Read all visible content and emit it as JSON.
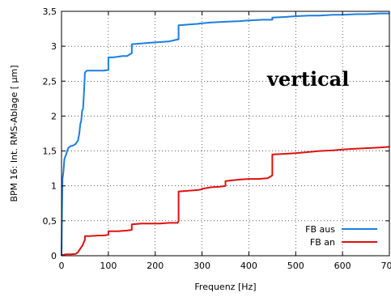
{
  "chart_data": {
    "type": "line",
    "title": "",
    "xlabel": "Frequenz [Hz]",
    "ylabel": "BPM 16: Int. RMS-Ablage [ µm]",
    "annotation": "vertical",
    "xlim": [
      0,
      700
    ],
    "ylim": [
      0,
      3.5
    ],
    "grid": true,
    "legend_position": "bottom-right",
    "x_ticks": [
      0,
      100,
      200,
      300,
      400,
      500,
      600,
      700
    ],
    "x_tick_labels": [
      "0",
      "100",
      "200",
      "300",
      "400",
      "500",
      "600",
      "700"
    ],
    "y_ticks": [
      0,
      0.5,
      1,
      1.5,
      2,
      2.5,
      3,
      3.5
    ],
    "y_tick_labels": [
      "0",
      "0,5",
      "1",
      "1,5",
      "2",
      "2,5",
      "3",
      "3,5"
    ],
    "series": [
      {
        "name": "FB aus",
        "color": "#1a7fe0",
        "x": [
          0,
          1,
          2,
          4,
          6,
          8,
          10,
          12,
          15,
          20,
          25,
          30,
          35,
          38,
          40,
          42,
          44,
          46,
          48,
          50,
          52,
          55,
          60,
          70,
          80,
          90,
          100,
          100,
          110,
          120,
          130,
          140,
          150,
          150,
          170,
          190,
          210,
          230,
          250,
          250,
          270,
          290,
          300,
          320,
          350,
          380,
          400,
          430,
          450,
          450,
          480,
          500,
          530,
          550,
          580,
          600,
          630,
          650,
          680,
          700
        ],
        "y": [
          0,
          0.65,
          1.1,
          1.2,
          1.38,
          1.42,
          1.45,
          1.5,
          1.55,
          1.57,
          1.58,
          1.6,
          1.65,
          1.75,
          1.88,
          1.93,
          2.08,
          2.1,
          2.35,
          2.62,
          2.64,
          2.65,
          2.65,
          2.65,
          2.65,
          2.65,
          2.66,
          2.84,
          2.84,
          2.85,
          2.86,
          2.86,
          2.9,
          3.03,
          3.04,
          3.05,
          3.06,
          3.07,
          3.1,
          3.3,
          3.31,
          3.32,
          3.33,
          3.34,
          3.35,
          3.36,
          3.37,
          3.38,
          3.38,
          3.41,
          3.42,
          3.43,
          3.44,
          3.44,
          3.45,
          3.45,
          3.46,
          3.46,
          3.47,
          3.47
        ]
      },
      {
        "name": "FB an",
        "color": "#e01010",
        "x": [
          0,
          2,
          5,
          10,
          20,
          30,
          35,
          38,
          40,
          42,
          45,
          48,
          50,
          50,
          60,
          70,
          80,
          90,
          100,
          100,
          120,
          140,
          150,
          150,
          170,
          190,
          210,
          230,
          248,
          250,
          250,
          270,
          290,
          300,
          300,
          320,
          340,
          350,
          350,
          380,
          400,
          420,
          440,
          450,
          450,
          480,
          500,
          520,
          550,
          580,
          600,
          620,
          650,
          680,
          700
        ],
        "y": [
          0,
          0.01,
          0.015,
          0.02,
          0.02,
          0.025,
          0.05,
          0.08,
          0.1,
          0.12,
          0.15,
          0.2,
          0.23,
          0.28,
          0.28,
          0.285,
          0.29,
          0.29,
          0.3,
          0.35,
          0.35,
          0.36,
          0.37,
          0.45,
          0.46,
          0.46,
          0.46,
          0.47,
          0.47,
          0.5,
          0.92,
          0.93,
          0.94,
          0.95,
          0.96,
          0.98,
          0.99,
          1.0,
          1.07,
          1.09,
          1.1,
          1.1,
          1.11,
          1.15,
          1.45,
          1.46,
          1.47,
          1.48,
          1.5,
          1.51,
          1.52,
          1.53,
          1.54,
          1.55,
          1.56
        ]
      }
    ]
  }
}
